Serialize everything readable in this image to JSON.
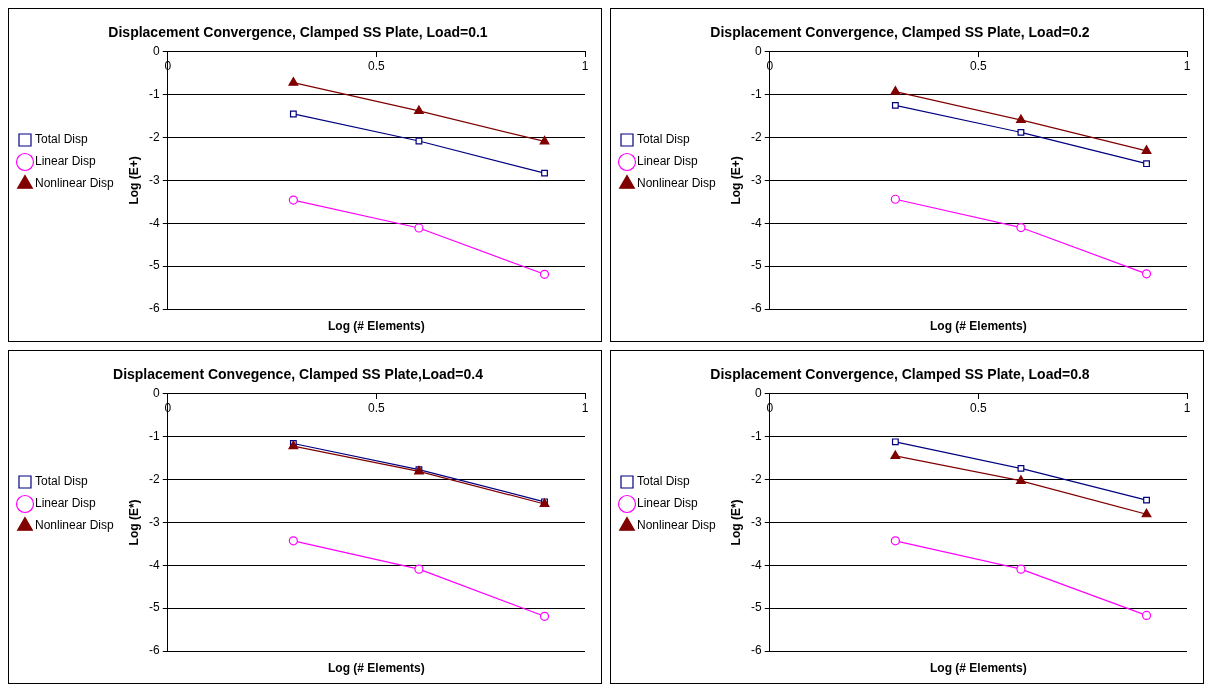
{
  "chart_data": [
    {
      "type": "line",
      "title": "Displacement Convergence, Clamped SS Plate, Load=0.1",
      "xlabel": "Log (# Elements)",
      "ylabel": "Log (E+)",
      "x": [
        0.301,
        0.602,
        0.903
      ],
      "xlim": [
        0,
        1
      ],
      "xticks": [
        0,
        0.5,
        1
      ],
      "ylim": [
        -6,
        0
      ],
      "yticks": [
        -6,
        -5,
        -4,
        -3,
        -2,
        -1,
        0
      ],
      "grid": "y",
      "legend": "left",
      "series": [
        {
          "name": "Total Disp",
          "color": "#000080",
          "marker": "square",
          "values": [
            -1.45,
            -2.08,
            -2.83
          ]
        },
        {
          "name": "Linear Disp",
          "color": "#ff00ff",
          "marker": "circle",
          "values": [
            -3.46,
            -4.11,
            -5.19
          ]
        },
        {
          "name": "Nonlinear Disp",
          "color": "#800000",
          "marker": "triangle",
          "values": [
            -0.72,
            -1.38,
            -2.09
          ]
        }
      ]
    },
    {
      "type": "line",
      "title": "Displacement Convergence, Clamped SS Plate, Load=0.2",
      "xlabel": "Log (# Elements)",
      "ylabel": "Log (E+)",
      "x": [
        0.301,
        0.602,
        0.903
      ],
      "xlim": [
        0,
        1
      ],
      "xticks": [
        0,
        0.5,
        1
      ],
      "ylim": [
        -6,
        0
      ],
      "yticks": [
        -6,
        -5,
        -4,
        -3,
        -2,
        -1,
        0
      ],
      "grid": "y",
      "legend": "left",
      "series": [
        {
          "name": "Total Disp",
          "color": "#000080",
          "marker": "square",
          "values": [
            -1.25,
            -1.88,
            -2.61
          ]
        },
        {
          "name": "Linear Disp",
          "color": "#ff00ff",
          "marker": "circle",
          "values": [
            -3.44,
            -4.1,
            -5.18
          ]
        },
        {
          "name": "Nonlinear Disp",
          "color": "#800000",
          "marker": "triangle",
          "values": [
            -0.93,
            -1.59,
            -2.31
          ]
        }
      ]
    },
    {
      "type": "line",
      "title": "Displacement Convegence, Clamped SS Plate,Load=0.4",
      "xlabel": "Log (# Elements)",
      "ylabel": "Log (E*)",
      "x": [
        0.301,
        0.602,
        0.903
      ],
      "xlim": [
        0,
        1
      ],
      "xticks": [
        0,
        0.5,
        1
      ],
      "ylim": [
        -6,
        0
      ],
      "yticks": [
        -6,
        -5,
        -4,
        -3,
        -2,
        -1,
        0
      ],
      "grid": "y",
      "legend": "left",
      "series": [
        {
          "name": "Total Disp",
          "color": "#000080",
          "marker": "square",
          "values": [
            -1.16,
            -1.77,
            -2.52
          ]
        },
        {
          "name": "Linear Disp",
          "color": "#ff00ff",
          "marker": "circle",
          "values": [
            -3.43,
            -4.09,
            -5.19
          ]
        },
        {
          "name": "Nonlinear Disp",
          "color": "#800000",
          "marker": "triangle",
          "values": [
            -1.22,
            -1.81,
            -2.57
          ]
        }
      ]
    },
    {
      "type": "line",
      "title": "Displacement Convergence, Clamped SS Plate, Load=0.8",
      "xlabel": "Log (# Elements)",
      "ylabel": "Log (E*)",
      "x": [
        0.301,
        0.602,
        0.903
      ],
      "xlim": [
        0,
        1
      ],
      "xticks": [
        0,
        0.5,
        1
      ],
      "ylim": [
        -6,
        0
      ],
      "yticks": [
        -6,
        -5,
        -4,
        -3,
        -2,
        -1,
        0
      ],
      "grid": "y",
      "legend": "left",
      "series": [
        {
          "name": "Total Disp",
          "color": "#000080",
          "marker": "square",
          "values": [
            -1.12,
            -1.74,
            -2.48
          ]
        },
        {
          "name": "Linear Disp",
          "color": "#ff00ff",
          "marker": "circle",
          "values": [
            -3.43,
            -4.09,
            -5.17
          ]
        },
        {
          "name": "Nonlinear Disp",
          "color": "#800000",
          "marker": "triangle",
          "values": [
            -1.45,
            -2.03,
            -2.81
          ]
        }
      ]
    }
  ]
}
